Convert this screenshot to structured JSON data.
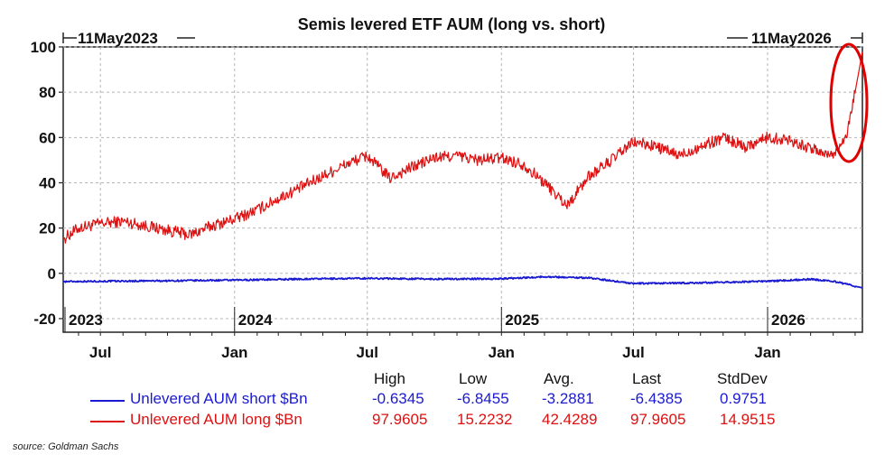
{
  "chart_data": {
    "type": "line",
    "title": "Semis levered ETF AUM (long vs. short)",
    "start_label": "11May2023",
    "end_label": "11May2026",
    "ylim": [
      -26,
      100
    ],
    "yticks": [
      100,
      80,
      60,
      40,
      20,
      0,
      -20
    ],
    "year_labels": [
      {
        "x": "2023-05-11",
        "label": "2023"
      },
      {
        "x": "2024-01-01",
        "label": "2024"
      },
      {
        "x": "2025-01-01",
        "label": "2025"
      },
      {
        "x": "2026-01-01",
        "label": "2026"
      }
    ],
    "month_labels": [
      {
        "x": "2023-07-01",
        "label": "Jul"
      },
      {
        "x": "2024-01-01",
        "label": "Jan"
      },
      {
        "x": "2024-07-01",
        "label": "Jul"
      },
      {
        "x": "2025-01-01",
        "label": "Jan"
      },
      {
        "x": "2025-07-01",
        "label": "Jul"
      },
      {
        "x": "2026-01-01",
        "label": "Jan"
      }
    ],
    "grid": true,
    "x_start": "2023-05-11",
    "x_end": "2026-05-11",
    "series": [
      {
        "name": "Unlevered AUM short $Bn",
        "color": "#1a1ad0",
        "x": [
          "2023-05-11",
          "2023-07-01",
          "2023-10-01",
          "2024-01-01",
          "2024-04-01",
          "2024-07-01",
          "2024-10-01",
          "2025-01-01",
          "2025-03-01",
          "2025-05-01",
          "2025-07-01",
          "2025-10-01",
          "2026-01-01",
          "2026-03-01",
          "2026-04-01",
          "2026-05-11"
        ],
        "values": [
          -3.6,
          -3.5,
          -3.3,
          -3.0,
          -2.5,
          -2.2,
          -2.5,
          -2.4,
          -1.5,
          -2.0,
          -4.5,
          -4.2,
          -3.5,
          -2.6,
          -3.5,
          -6.4
        ]
      },
      {
        "name": "Unlevered AUM long $Bn",
        "color": "#dd1111",
        "x": [
          "2023-05-11",
          "2023-06-01",
          "2023-07-01",
          "2023-08-01",
          "2023-09-01",
          "2023-10-01",
          "2023-11-01",
          "2023-12-01",
          "2024-01-01",
          "2024-02-01",
          "2024-03-01",
          "2024-04-01",
          "2024-05-01",
          "2024-06-01",
          "2024-07-01",
          "2024-08-01",
          "2024-09-01",
          "2024-10-01",
          "2024-11-01",
          "2024-12-01",
          "2025-01-01",
          "2025-02-01",
          "2025-03-01",
          "2025-04-01",
          "2025-05-01",
          "2025-06-01",
          "2025-07-01",
          "2025-08-01",
          "2025-09-01",
          "2025-10-01",
          "2025-11-01",
          "2025-12-01",
          "2026-01-01",
          "2026-02-01",
          "2026-03-01",
          "2026-04-01",
          "2026-04-20",
          "2026-05-01",
          "2026-05-11"
        ],
        "values": [
          15.2,
          20,
          22,
          23,
          21,
          19,
          17,
          21,
          24,
          28,
          33,
          38,
          43,
          48,
          52,
          42,
          47,
          51,
          52,
          50,
          51,
          48,
          40,
          30,
          43,
          50,
          58,
          56,
          52,
          56,
          60,
          56,
          60,
          59,
          55,
          52,
          62,
          80,
          97.96
        ]
      }
    ],
    "stats": {
      "headers": [
        "High",
        "Low",
        "Avg.",
        "Last",
        "StdDev"
      ],
      "rows": [
        {
          "name": "Unlevered AUM short $Bn",
          "color": "#1a1ad0",
          "values": [
            "-0.6345",
            "-6.8455",
            "-3.2881",
            "-6.4385",
            "0.9751"
          ]
        },
        {
          "name": "Unlevered AUM long $Bn",
          "color": "#dd1111",
          "values": [
            "97.9605",
            "15.2232",
            "42.4289",
            "97.9605",
            "14.9515"
          ]
        }
      ]
    }
  },
  "source": "source: Goldman Sachs"
}
